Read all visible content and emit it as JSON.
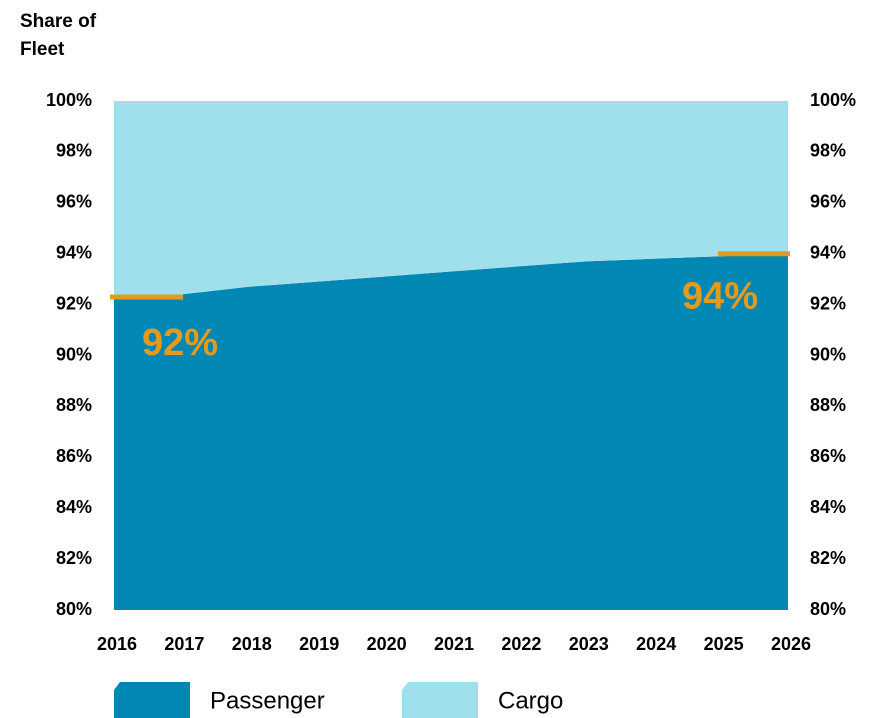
{
  "chart_data": {
    "type": "stacked_area",
    "y_label": "Share of Fleet",
    "x": [
      2016,
      2017,
      2018,
      2019,
      2020,
      2021,
      2022,
      2023,
      2024,
      2025,
      2026
    ],
    "xlim": [
      2016,
      2026
    ],
    "xticks": [
      2016,
      2017,
      2018,
      2019,
      2020,
      2021,
      2022,
      2023,
      2024,
      2025,
      2026
    ],
    "series": [
      {
        "name": "Passenger",
        "color": "#0087b4",
        "values": [
          92.3,
          92.4,
          92.7,
          92.9,
          93.1,
          93.3,
          93.5,
          93.7,
          93.8,
          93.9,
          94.0
        ]
      },
      {
        "name": "Cargo",
        "color": "#a0e0ec",
        "values": [
          7.7,
          7.6,
          7.3,
          7.1,
          6.9,
          6.7,
          6.5,
          6.3,
          6.2,
          6.1,
          6.0
        ]
      }
    ],
    "ylim": [
      80,
      100
    ],
    "yticks": [
      {
        "value": 80,
        "label": "80%"
      },
      {
        "value": 82,
        "label": "82%"
      },
      {
        "value": 84,
        "label": "84%"
      },
      {
        "value": 86,
        "label": "86%"
      },
      {
        "value": 88,
        "label": "88%"
      },
      {
        "value": 90,
        "label": "90%"
      },
      {
        "value": 92,
        "label": "92%"
      },
      {
        "value": 94,
        "label": "94%"
      },
      {
        "value": 96,
        "label": "96%"
      },
      {
        "value": 98,
        "label": "98%"
      },
      {
        "value": 100,
        "label": "100%"
      }
    ],
    "y2lim": [
      80,
      100
    ],
    "y2ticks": [
      {
        "value": 80,
        "label": "80%"
      },
      {
        "value": 82,
        "label": "82%"
      },
      {
        "value": 84,
        "label": "84%"
      },
      {
        "value": 86,
        "label": "86%"
      },
      {
        "value": 88,
        "label": "88%"
      },
      {
        "value": 90,
        "label": "90%"
      },
      {
        "value": 92,
        "label": "92%"
      },
      {
        "value": 94,
        "label": "94%"
      },
      {
        "value": 96,
        "label": "96%"
      },
      {
        "value": 98,
        "label": "98%"
      },
      {
        "value": 100,
        "label": "100%"
      }
    ],
    "annotations": [
      "92%",
      "94%"
    ],
    "annotation_color": "#e39b1f",
    "legend": "bottom"
  }
}
